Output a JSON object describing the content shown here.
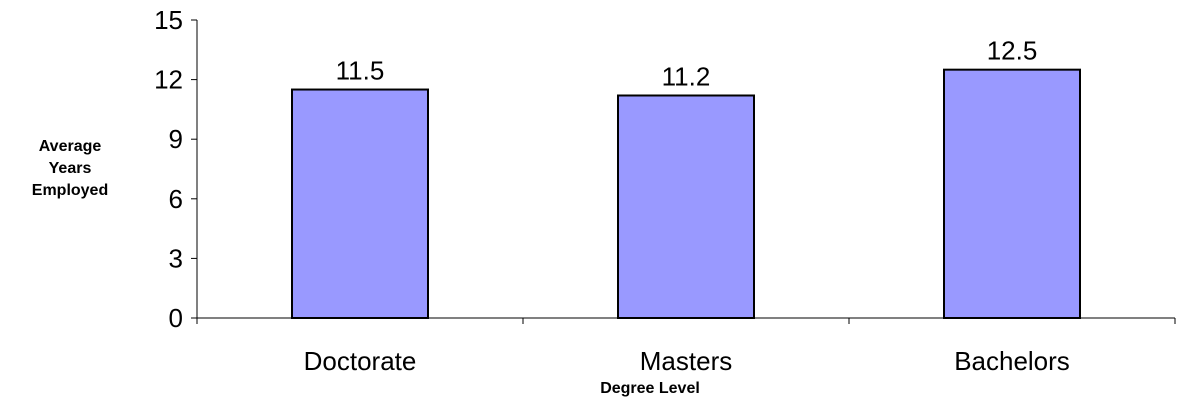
{
  "chart_data": {
    "type": "bar",
    "categories": [
      "Doctorate",
      "Masters",
      "Bachelors"
    ],
    "values": [
      11.5,
      11.2,
      12.5
    ],
    "data_labels": [
      "11.5",
      "11.2",
      "12.5"
    ],
    "title": "",
    "xlabel": "Degree Level",
    "ylabel_lines": [
      "Average",
      "Years",
      "Employed"
    ],
    "ylim": [
      0,
      15
    ],
    "yticks": [
      0,
      3,
      6,
      9,
      12,
      15
    ],
    "ytick_labels": [
      "0",
      "3",
      "6",
      "9",
      "12",
      "15"
    ],
    "grid": false,
    "legend": "none",
    "bar_color": "#9999FF",
    "bar_edge_color": "#000000"
  }
}
